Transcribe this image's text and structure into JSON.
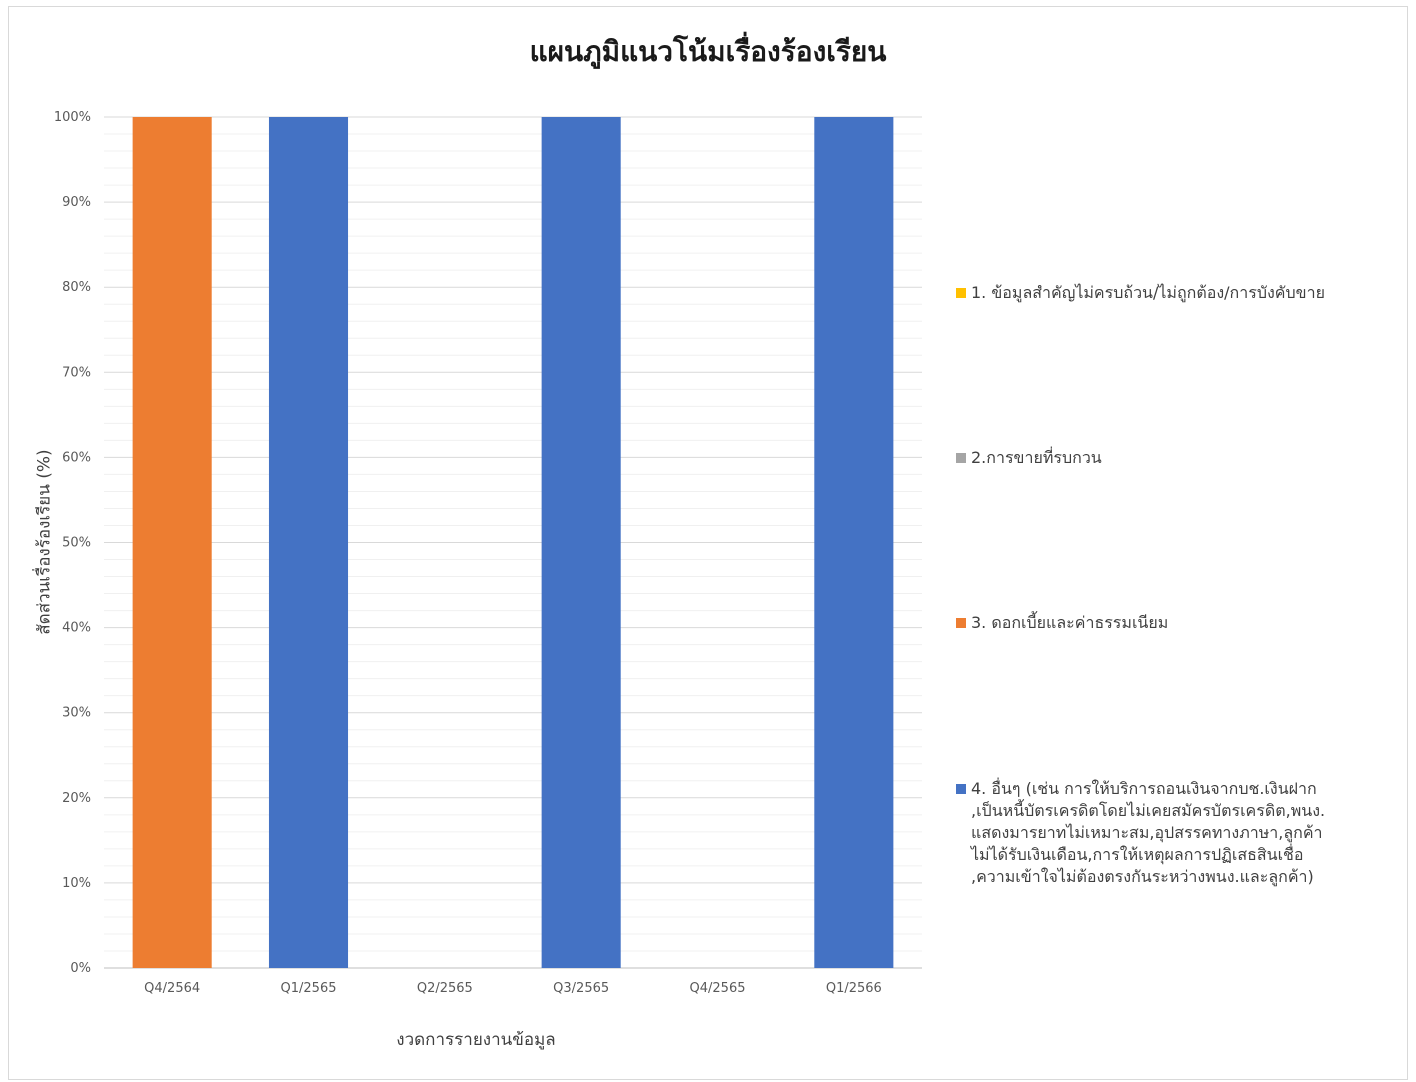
{
  "chart_data": {
    "type": "bar",
    "stacked": true,
    "title": "แผนภูมิแนวโน้มเรื่องร้องเรียน",
    "xlabel": "งวดการรายงานข้อมูล",
    "ylabel": "สัดส่วนเรื่องร้องเรียน (%)",
    "ylim": [
      0,
      100
    ],
    "yticks": [
      "0%",
      "10%",
      "20%",
      "30%",
      "40%",
      "50%",
      "60%",
      "70%",
      "80%",
      "90%",
      "100%"
    ],
    "grid": true,
    "legend_position": "right",
    "categories": [
      "Q4/2564",
      "Q1/2565",
      "Q2/2565",
      "Q3/2565",
      "Q4/2565",
      "Q1/2566"
    ],
    "series": [
      {
        "name": "1. ข้อมูลสำคัญไม่ครบถ้วน/ไม่ถูกต้อง/การบังคับขาย",
        "color": "#ffc000",
        "values": [
          0,
          0,
          0,
          0,
          0,
          0
        ]
      },
      {
        "name": "2.การขายที่รบกวน",
        "color": "#a5a5a5",
        "values": [
          0,
          0,
          0,
          0,
          0,
          0
        ]
      },
      {
        "name": "3. ดอกเบี้ยและค่าธรรมเนียม",
        "color": "#ed7d31",
        "values": [
          100,
          0,
          0,
          0,
          0,
          0
        ]
      },
      {
        "name": "4. อื่นๆ  (เช่น การให้บริการถอนเงินจากบช.เงินฝาก\n,เป็นหนี้บัตรเครดิตโดยไม่เคยสมัครบัตรเครดิต,พนง.\nแสดงมารยาทไม่เหมาะสม,อุปสรรคทางภาษา,ลูกค้า\nไม่ได้รับเงินเดือน,การให้เหตุผลการปฏิเสธสินเชื่อ\n,ความเข้าใจไม่ต้องตรงกันระหว่างพนง.และลูกค้า)",
        "color": "#4472c4",
        "values": [
          0,
          100,
          0,
          100,
          0,
          100
        ]
      }
    ]
  }
}
